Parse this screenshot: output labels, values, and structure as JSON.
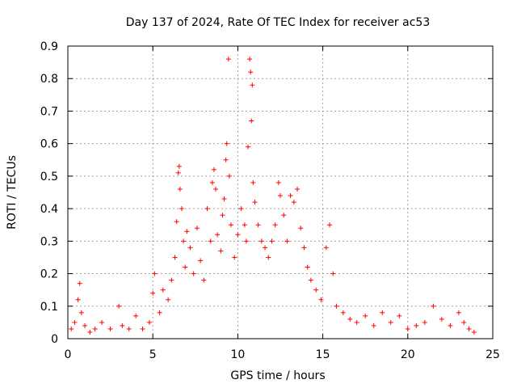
{
  "chart_data": {
    "type": "scatter",
    "title": "Day 137 of 2024, Rate Of TEC Index for receiver ac53",
    "xlabel": "GPS time / hours",
    "ylabel": "ROTI / TECUs",
    "xlim": [
      0,
      25
    ],
    "ylim": [
      0,
      0.9
    ],
    "x_ticks": [
      "0",
      "5",
      "10",
      "15",
      "20",
      "25"
    ],
    "y_ticks": [
      "0",
      "0.1",
      "0.2",
      "0.3",
      "0.4",
      "0.5",
      "0.6",
      "0.7",
      "0.8",
      "0.9"
    ],
    "grid": true,
    "marker": "+",
    "color": "#ff0000",
    "series": [
      {
        "points": [
          [
            0.2,
            0.03
          ],
          [
            0.4,
            0.05
          ],
          [
            0.6,
            0.12
          ],
          [
            0.7,
            0.17
          ],
          [
            0.8,
            0.08
          ],
          [
            1.0,
            0.04
          ],
          [
            1.3,
            0.02
          ],
          [
            1.6,
            0.03
          ],
          [
            2.0,
            0.05
          ],
          [
            2.5,
            0.03
          ],
          [
            3.0,
            0.1
          ],
          [
            3.2,
            0.04
          ],
          [
            3.6,
            0.03
          ],
          [
            4.0,
            0.07
          ],
          [
            4.4,
            0.03
          ],
          [
            4.8,
            0.05
          ],
          [
            5.0,
            0.14
          ],
          [
            5.1,
            0.2
          ],
          [
            5.4,
            0.08
          ],
          [
            5.6,
            0.15
          ],
          [
            5.9,
            0.12
          ],
          [
            6.1,
            0.18
          ],
          [
            6.3,
            0.25
          ],
          [
            6.4,
            0.36
          ],
          [
            6.5,
            0.51
          ],
          [
            6.55,
            0.53
          ],
          [
            6.6,
            0.46
          ],
          [
            6.7,
            0.4
          ],
          [
            6.8,
            0.3
          ],
          [
            6.9,
            0.22
          ],
          [
            7.0,
            0.33
          ],
          [
            7.2,
            0.28
          ],
          [
            7.4,
            0.2
          ],
          [
            7.6,
            0.34
          ],
          [
            7.8,
            0.24
          ],
          [
            8.0,
            0.18
          ],
          [
            8.2,
            0.4
          ],
          [
            8.4,
            0.3
          ],
          [
            8.5,
            0.48
          ],
          [
            8.6,
            0.52
          ],
          [
            8.7,
            0.46
          ],
          [
            8.8,
            0.32
          ],
          [
            9.0,
            0.27
          ],
          [
            9.1,
            0.38
          ],
          [
            9.2,
            0.43
          ],
          [
            9.3,
            0.55
          ],
          [
            9.35,
            0.6
          ],
          [
            9.45,
            0.86
          ],
          [
            9.5,
            0.5
          ],
          [
            9.6,
            0.35
          ],
          [
            9.8,
            0.25
          ],
          [
            10.0,
            0.32
          ],
          [
            10.2,
            0.4
          ],
          [
            10.4,
            0.35
          ],
          [
            10.5,
            0.3
          ],
          [
            10.6,
            0.59
          ],
          [
            10.7,
            0.86
          ],
          [
            10.75,
            0.82
          ],
          [
            10.8,
            0.67
          ],
          [
            10.85,
            0.78
          ],
          [
            10.9,
            0.48
          ],
          [
            11.0,
            0.42
          ],
          [
            11.2,
            0.35
          ],
          [
            11.4,
            0.3
          ],
          [
            11.6,
            0.28
          ],
          [
            11.8,
            0.25
          ],
          [
            12.0,
            0.3
          ],
          [
            12.2,
            0.35
          ],
          [
            12.4,
            0.48
          ],
          [
            12.5,
            0.44
          ],
          [
            12.7,
            0.38
          ],
          [
            12.9,
            0.3
          ],
          [
            13.1,
            0.44
          ],
          [
            13.3,
            0.42
          ],
          [
            13.5,
            0.46
          ],
          [
            13.7,
            0.34
          ],
          [
            13.9,
            0.28
          ],
          [
            14.1,
            0.22
          ],
          [
            14.3,
            0.18
          ],
          [
            14.6,
            0.15
          ],
          [
            14.9,
            0.12
          ],
          [
            15.2,
            0.28
          ],
          [
            15.4,
            0.35
          ],
          [
            15.6,
            0.2
          ],
          [
            15.8,
            0.1
          ],
          [
            16.2,
            0.08
          ],
          [
            16.6,
            0.06
          ],
          [
            17.0,
            0.05
          ],
          [
            17.5,
            0.07
          ],
          [
            18.0,
            0.04
          ],
          [
            18.5,
            0.08
          ],
          [
            19.0,
            0.05
          ],
          [
            19.5,
            0.07
          ],
          [
            20.0,
            0.03
          ],
          [
            20.5,
            0.04
          ],
          [
            21.0,
            0.05
          ],
          [
            21.5,
            0.1
          ],
          [
            22.0,
            0.06
          ],
          [
            22.5,
            0.04
          ],
          [
            23.0,
            0.08
          ],
          [
            23.3,
            0.05
          ],
          [
            23.6,
            0.03
          ],
          [
            23.9,
            0.02
          ]
        ]
      }
    ]
  }
}
